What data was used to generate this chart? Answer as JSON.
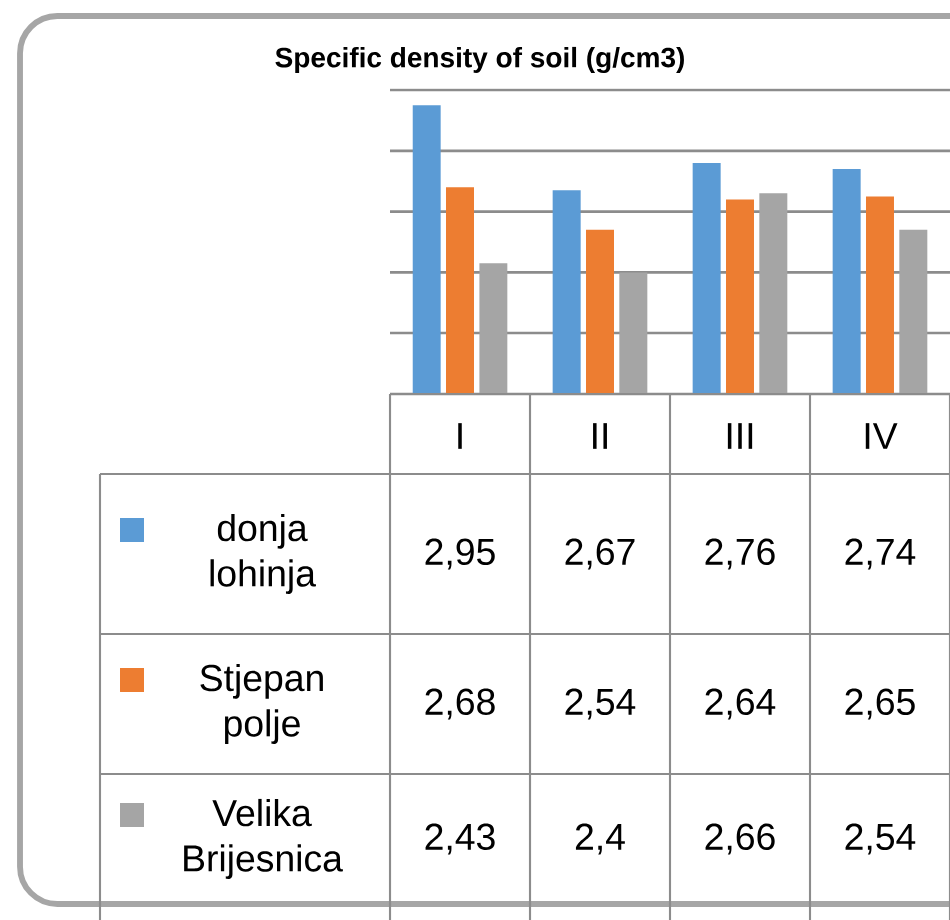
{
  "chart_data": {
    "type": "bar",
    "title": "Specific density of soil (g/cm3)",
    "categories": [
      "I",
      "II",
      "III",
      "IV"
    ],
    "series": [
      {
        "name": "donja lohinja",
        "color": "#5b9bd5",
        "values": [
          2.95,
          2.67,
          2.76,
          2.74
        ],
        "value_labels": [
          "2,95",
          "2,67",
          "2,76",
          "2,74"
        ]
      },
      {
        "name": "Stjepan polje",
        "color": "#ed7d31",
        "values": [
          2.68,
          2.54,
          2.64,
          2.65
        ],
        "value_labels": [
          "2,68",
          "2,54",
          "2,64",
          "2,65"
        ]
      },
      {
        "name": "Velika Brijesnica",
        "color": "#a5a5a5",
        "values": [
          2.43,
          2.4,
          2.66,
          2.54
        ],
        "value_labels": [
          "2,43",
          "2,4",
          "2,66",
          "2,54"
        ]
      }
    ],
    "ylim": [
      2,
      3
    ],
    "yticks": [
      {
        "value": 2.2,
        "label": null
      },
      {
        "value": 2.4,
        "label": null
      },
      {
        "value": 2.6,
        "label": null
      },
      {
        "value": 2.8,
        "label": null
      },
      {
        "value": 3,
        "label": null
      }
    ],
    "grid": "y",
    "legend": "bottom left"
  }
}
